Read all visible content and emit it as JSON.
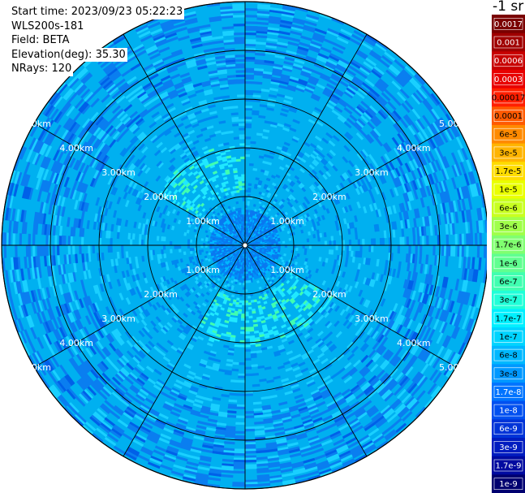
{
  "header": {
    "start_time_label": "Start time:",
    "start_time": "2023/09/23 05:22:23",
    "instrument": "WLS200s-181",
    "field_label": "Field:",
    "field": "BETA",
    "elevation_label": "Elevation(deg):",
    "elevation": "35.30",
    "nrays_label": "NRays:",
    "nrays": "120"
  },
  "ppi": {
    "range_rings_km": [
      1,
      2,
      3,
      4,
      5
    ],
    "range_ring_labels": [
      "1.00km",
      "2.00km",
      "3.00km",
      "4.00km",
      "5.00km"
    ],
    "max_range_km": 5.0,
    "spoke_angles_deg": [
      0,
      30,
      60,
      90,
      120,
      150,
      180,
      210,
      240,
      270,
      300,
      330
    ],
    "ring_color": "#000000",
    "label_color": "#ffffff"
  },
  "colorbar": {
    "unit_label": "-1 sr",
    "labels": [
      "0.0017",
      "0.001",
      "0.0006",
      "0.0003",
      "0.00017",
      "0.0001",
      "6e-5",
      "3e-5",
      "1.7e-5",
      "1e-5",
      "6e-6",
      "3e-6",
      "1.7e-6",
      "1e-6",
      "6e-7",
      "3e-7",
      "1.7e-7",
      "1e-7",
      "6e-8",
      "3e-8",
      "1.7e-8",
      "1e-8",
      "6e-9",
      "3e-9",
      "1.7e-9",
      "1e-9"
    ],
    "colors": [
      "#7a0000",
      "#a00000",
      "#c80000",
      "#e80000",
      "#ff1f00",
      "#ff5a00",
      "#ff8a00",
      "#ffb400",
      "#ffdc00",
      "#eaff00",
      "#c8ff20",
      "#a0ff4a",
      "#80ff70",
      "#60ff90",
      "#40ffb0",
      "#20ffd8",
      "#00f0ff",
      "#00d4ff",
      "#00b8ff",
      "#0098ff",
      "#0074ff",
      "#0050f0",
      "#0034d8",
      "#001cc0",
      "#000aa0",
      "#000070"
    ],
    "label_colors": [
      "#ffffff",
      "#ffffff",
      "#ffffff",
      "#ffffff",
      "#000000",
      "#000000",
      "#000000",
      "#000000",
      "#000000",
      "#000000",
      "#000000",
      "#000000",
      "#000000",
      "#000000",
      "#000000",
      "#000000",
      "#000000",
      "#000000",
      "#000000",
      "#000000",
      "#ffffff",
      "#ffffff",
      "#ffffff",
      "#ffffff",
      "#ffffff",
      "#ffffff"
    ]
  }
}
